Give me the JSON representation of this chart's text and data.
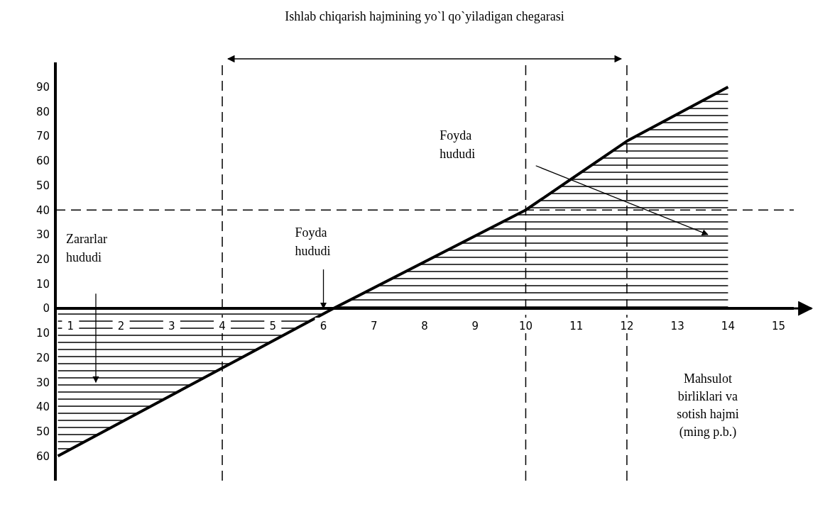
{
  "chart_data": {
    "type": "area",
    "title": "Ishlab chiqarish hajmining yo`l qo`yiladigan chegarasi",
    "xlabel": "Mahsulot birliklari va sotish hajmi (ming p.b.)",
    "xlim": [
      0.7,
      15.3
    ],
    "xticks": [
      1,
      2,
      3,
      4,
      5,
      6,
      7,
      8,
      9,
      10,
      11,
      12,
      13,
      14,
      15
    ],
    "ylim": [
      -70,
      100
    ],
    "yticks": [
      {
        "value": -60,
        "label": "60"
      },
      {
        "value": -50,
        "label": "50"
      },
      {
        "value": -40,
        "label": "40"
      },
      {
        "value": -30,
        "label": "30"
      },
      {
        "value": -20,
        "label": "20"
      },
      {
        "value": -10,
        "label": "10"
      },
      0,
      10,
      20,
      30,
      40,
      50,
      60,
      70,
      80,
      90
    ],
    "series": [
      {
        "color": "#000000",
        "x": [
          0.75,
          6.2,
          10,
          12,
          14
        ],
        "values": [
          -60,
          0,
          40,
          68,
          90
        ]
      }
    ],
    "ref_lines": [
      {
        "axis": "x",
        "value": 4,
        "line_style": "dashed"
      },
      {
        "axis": "x",
        "value": 10,
        "line_style": "dashed"
      },
      {
        "axis": "x",
        "value": 12,
        "line_style": "dashed"
      },
      {
        "axis": "y",
        "value": 40,
        "line_style": "dashed"
      }
    ],
    "annotations": [
      "Zararlar hududi",
      {
        "text": "Foyda hududi",
        "x": 6,
        "y": 0
      },
      "Foyda hududi"
    ],
    "marker": "none"
  }
}
